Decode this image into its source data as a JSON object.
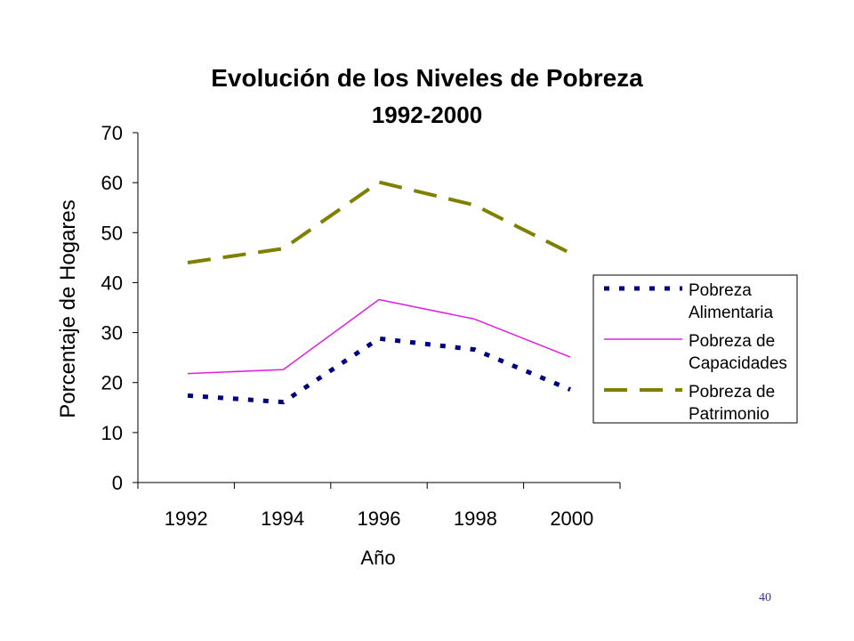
{
  "chart_data": {
    "type": "line",
    "title": "Evolución de los Niveles de Pobreza",
    "subtitle": "1992-2000",
    "xlabel": "Año",
    "ylabel": "Porcentaje de Hogares",
    "categories": [
      "1992",
      "1994",
      "1996",
      "1998",
      "2000"
    ],
    "ylim": [
      0,
      70
    ],
    "yticks": [
      0,
      10,
      20,
      30,
      40,
      50,
      60,
      70
    ],
    "x": [
      1992,
      1994,
      1996,
      1998,
      2000
    ],
    "series": [
      {
        "name": "Pobreza Alimentaria",
        "name_lines": [
          "Pobreza",
          "Alimentaria"
        ],
        "x": [
          1992,
          1994,
          1996,
          1998,
          2000
        ],
        "values": [
          17.4,
          16.1,
          28.8,
          26.6,
          18.6
        ],
        "color": "#000080",
        "style": "dotted"
      },
      {
        "name": "Pobreza de Capacidades",
        "name_lines": [
          "Pobreza de",
          "Capacidades"
        ],
        "x": [
          1992,
          1994,
          1996,
          1998,
          2000
        ],
        "values": [
          21.8,
          22.6,
          36.6,
          32.7,
          25.1
        ],
        "color": "#e020e0",
        "style": "solid"
      },
      {
        "name": "Pobreza de Patrimonio",
        "name_lines": [
          "Pobreza de",
          "Patrimonio"
        ],
        "x": [
          1992,
          1994,
          1996,
          1998,
          2000
        ],
        "values": [
          44.0,
          46.8,
          60.1,
          55.5,
          45.9
        ],
        "color": "#808000",
        "style": "dashed"
      }
    ],
    "legend_position": "right",
    "grid": false
  },
  "page_number": "40"
}
